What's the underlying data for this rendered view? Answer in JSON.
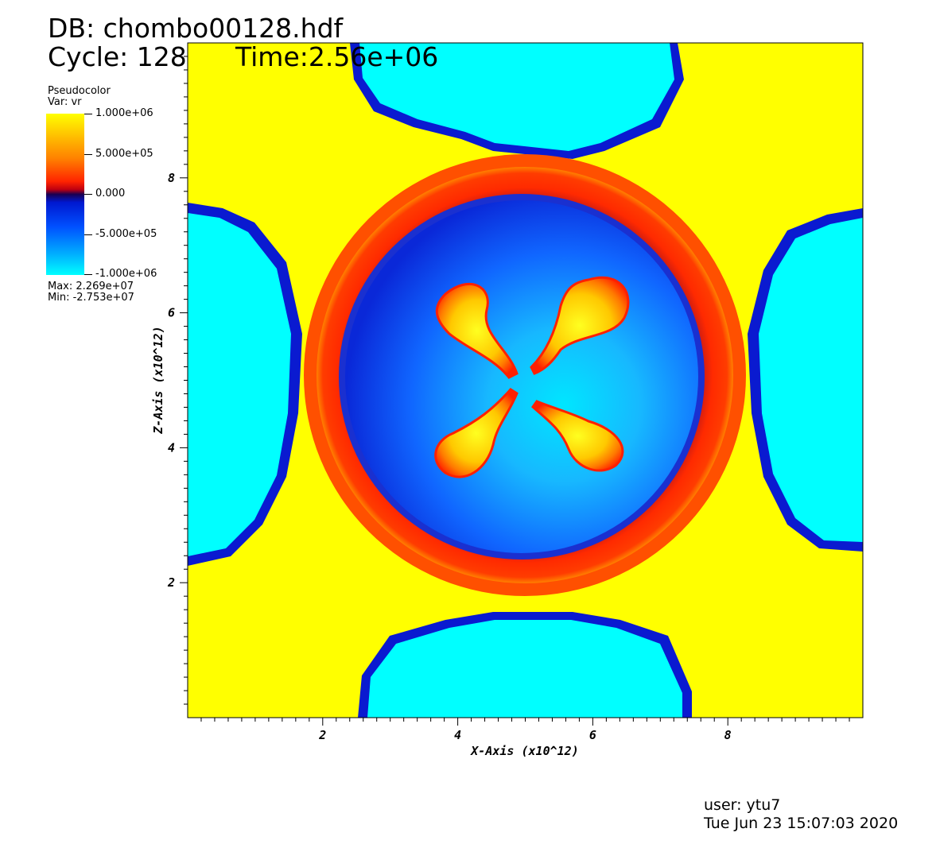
{
  "header": {
    "db": "DB: chombo00128.hdf",
    "cycle": "Cycle: 128",
    "time": "Time:2.56e+06"
  },
  "legend": {
    "kind": "Pseudocolor",
    "var": "Var: vr",
    "max": "Max: 2.269e+07",
    "min": "Min: -2.753e+07",
    "ticks": [
      "1.000e+06",
      "5.000e+05",
      "0.000",
      "-5.000e+05",
      "-1.000e+06"
    ]
  },
  "footer": {
    "user": "user: ytu7",
    "date": "Tue Jun 23 15:07:03 2020"
  },
  "chart_data": {
    "type": "heatmap",
    "title": "",
    "xlabel": "X-Axis  (x10^12)",
    "ylabel": "Z-Axis  (x10^12)",
    "xlim": [
      0,
      10
    ],
    "ylim": [
      0,
      10
    ],
    "x_ticks": [
      "2",
      "4",
      "6",
      "8"
    ],
    "y_ticks": [
      "2",
      "4",
      "6",
      "8"
    ],
    "variable": "vr",
    "colorscale_range": [
      -1000000,
      1000000
    ],
    "colorscale": [
      "#00ffff",
      "#0050ff",
      "#1a0050",
      "#ff2400",
      "#ffff00"
    ]
  }
}
